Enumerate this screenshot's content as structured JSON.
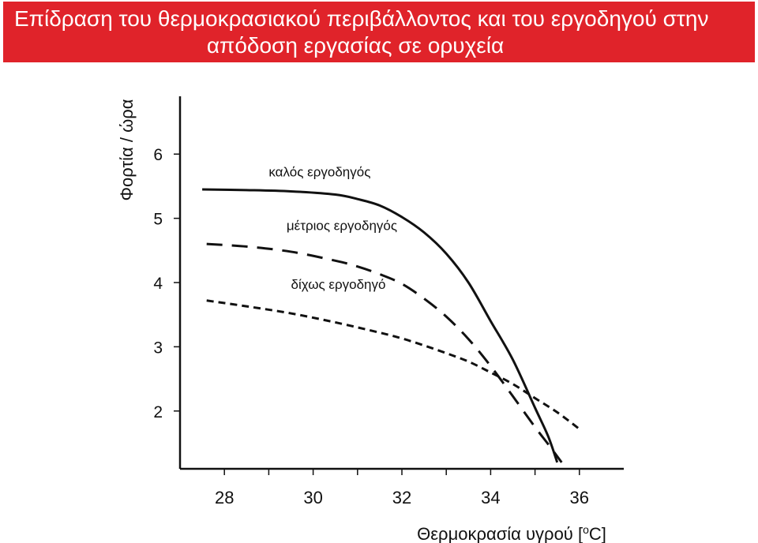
{
  "header": {
    "title_line1": "Επίδραση του θερμοκρασιακού περιβάλλοντος και του εργοδηγού στην",
    "title_line2": "απόδοση εργασίας σε ορυχεία"
  },
  "colors": {
    "banner": "#e0232a",
    "banner_text": "#ffffff",
    "ink": "#111111"
  },
  "chart_data": {
    "type": "line",
    "title": "Επίδραση του θερμοκρασιακού περιβάλλοντος και του εργοδηγού στην απόδοση εργασίας σε ορυχεία",
    "xlabel": "Θερμοκρασία υγρού [°C]",
    "xlabel_parts": {
      "before": "Θερμοκρασία υγρού [",
      "sup": "o",
      "after": "C]"
    },
    "ylabel": "Φορτία / ώρα",
    "xlim": [
      27,
      37
    ],
    "ylim": [
      1.1,
      6.9
    ],
    "xticks": [
      28,
      30,
      32,
      34,
      36
    ],
    "yticks": [
      2,
      3,
      4,
      5,
      6
    ],
    "grid": false,
    "legend": "inline labels",
    "series": [
      {
        "name": "καλός εργοδηγός",
        "style": "solid",
        "x": [
          27.5,
          28.5,
          29.5,
          30.5,
          31.0,
          31.5,
          32.0,
          32.5,
          33.0,
          33.5,
          34.0,
          34.5,
          35.0,
          35.3,
          35.5
        ],
        "y": [
          5.45,
          5.44,
          5.42,
          5.37,
          5.3,
          5.2,
          5.02,
          4.78,
          4.45,
          4.0,
          3.4,
          2.8,
          2.05,
          1.6,
          1.2
        ]
      },
      {
        "name": "μέτριος εργοδηγός",
        "style": "dashed",
        "x": [
          27.6,
          28.5,
          29.5,
          30.5,
          31.0,
          31.5,
          32.0,
          32.5,
          33.0,
          33.5,
          34.0,
          34.5,
          35.0,
          35.3,
          35.6
        ],
        "y": [
          4.6,
          4.56,
          4.48,
          4.34,
          4.25,
          4.13,
          3.98,
          3.75,
          3.47,
          3.12,
          2.7,
          2.23,
          1.75,
          1.48,
          1.2
        ]
      },
      {
        "name": "δίχως εργοδηγό",
        "style": "dotted",
        "x": [
          27.6,
          28.5,
          29.5,
          30.5,
          31.5,
          32.0,
          32.5,
          33.0,
          33.5,
          34.0,
          34.5,
          35.0,
          35.5,
          36.0
        ],
        "y": [
          3.72,
          3.63,
          3.52,
          3.38,
          3.22,
          3.13,
          3.02,
          2.9,
          2.77,
          2.6,
          2.42,
          2.2,
          1.98,
          1.72
        ]
      }
    ],
    "annotations": [
      {
        "text": "καλός εργοδηγός",
        "x": 29.0,
        "y": 5.65
      },
      {
        "text": "μέτριος εργοδηγός",
        "x": 29.4,
        "y": 4.82
      },
      {
        "text": "δίχως εργοδηγό",
        "x": 29.5,
        "y": 3.9
      }
    ]
  }
}
